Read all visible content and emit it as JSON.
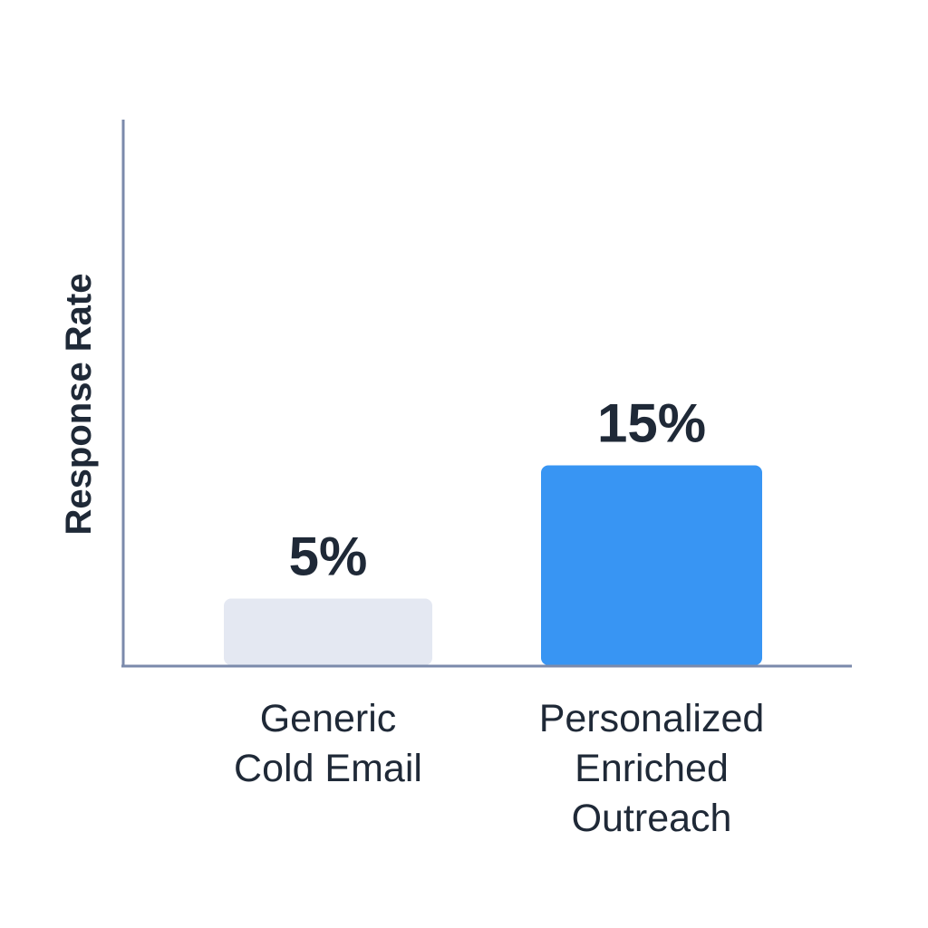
{
  "chart_data": {
    "type": "bar",
    "categories": [
      "Generic Cold Email",
      "Personalized Enriched Outreach"
    ],
    "category_lines": [
      [
        "Generic",
        "Cold Email"
      ],
      [
        "Personalized",
        "Enriched",
        "Outreach"
      ]
    ],
    "values": [
      5,
      15
    ],
    "value_labels": [
      "5%",
      "15%"
    ],
    "bar_colors": [
      "#e4e8f2",
      "#3895f3"
    ],
    "axis_color": "#7b8aab",
    "text_color": "#1f2937",
    "title": "",
    "xlabel": "",
    "ylabel": "Response Rate",
    "ylim": [
      0,
      20
    ],
    "grid": false,
    "legend": "none"
  }
}
